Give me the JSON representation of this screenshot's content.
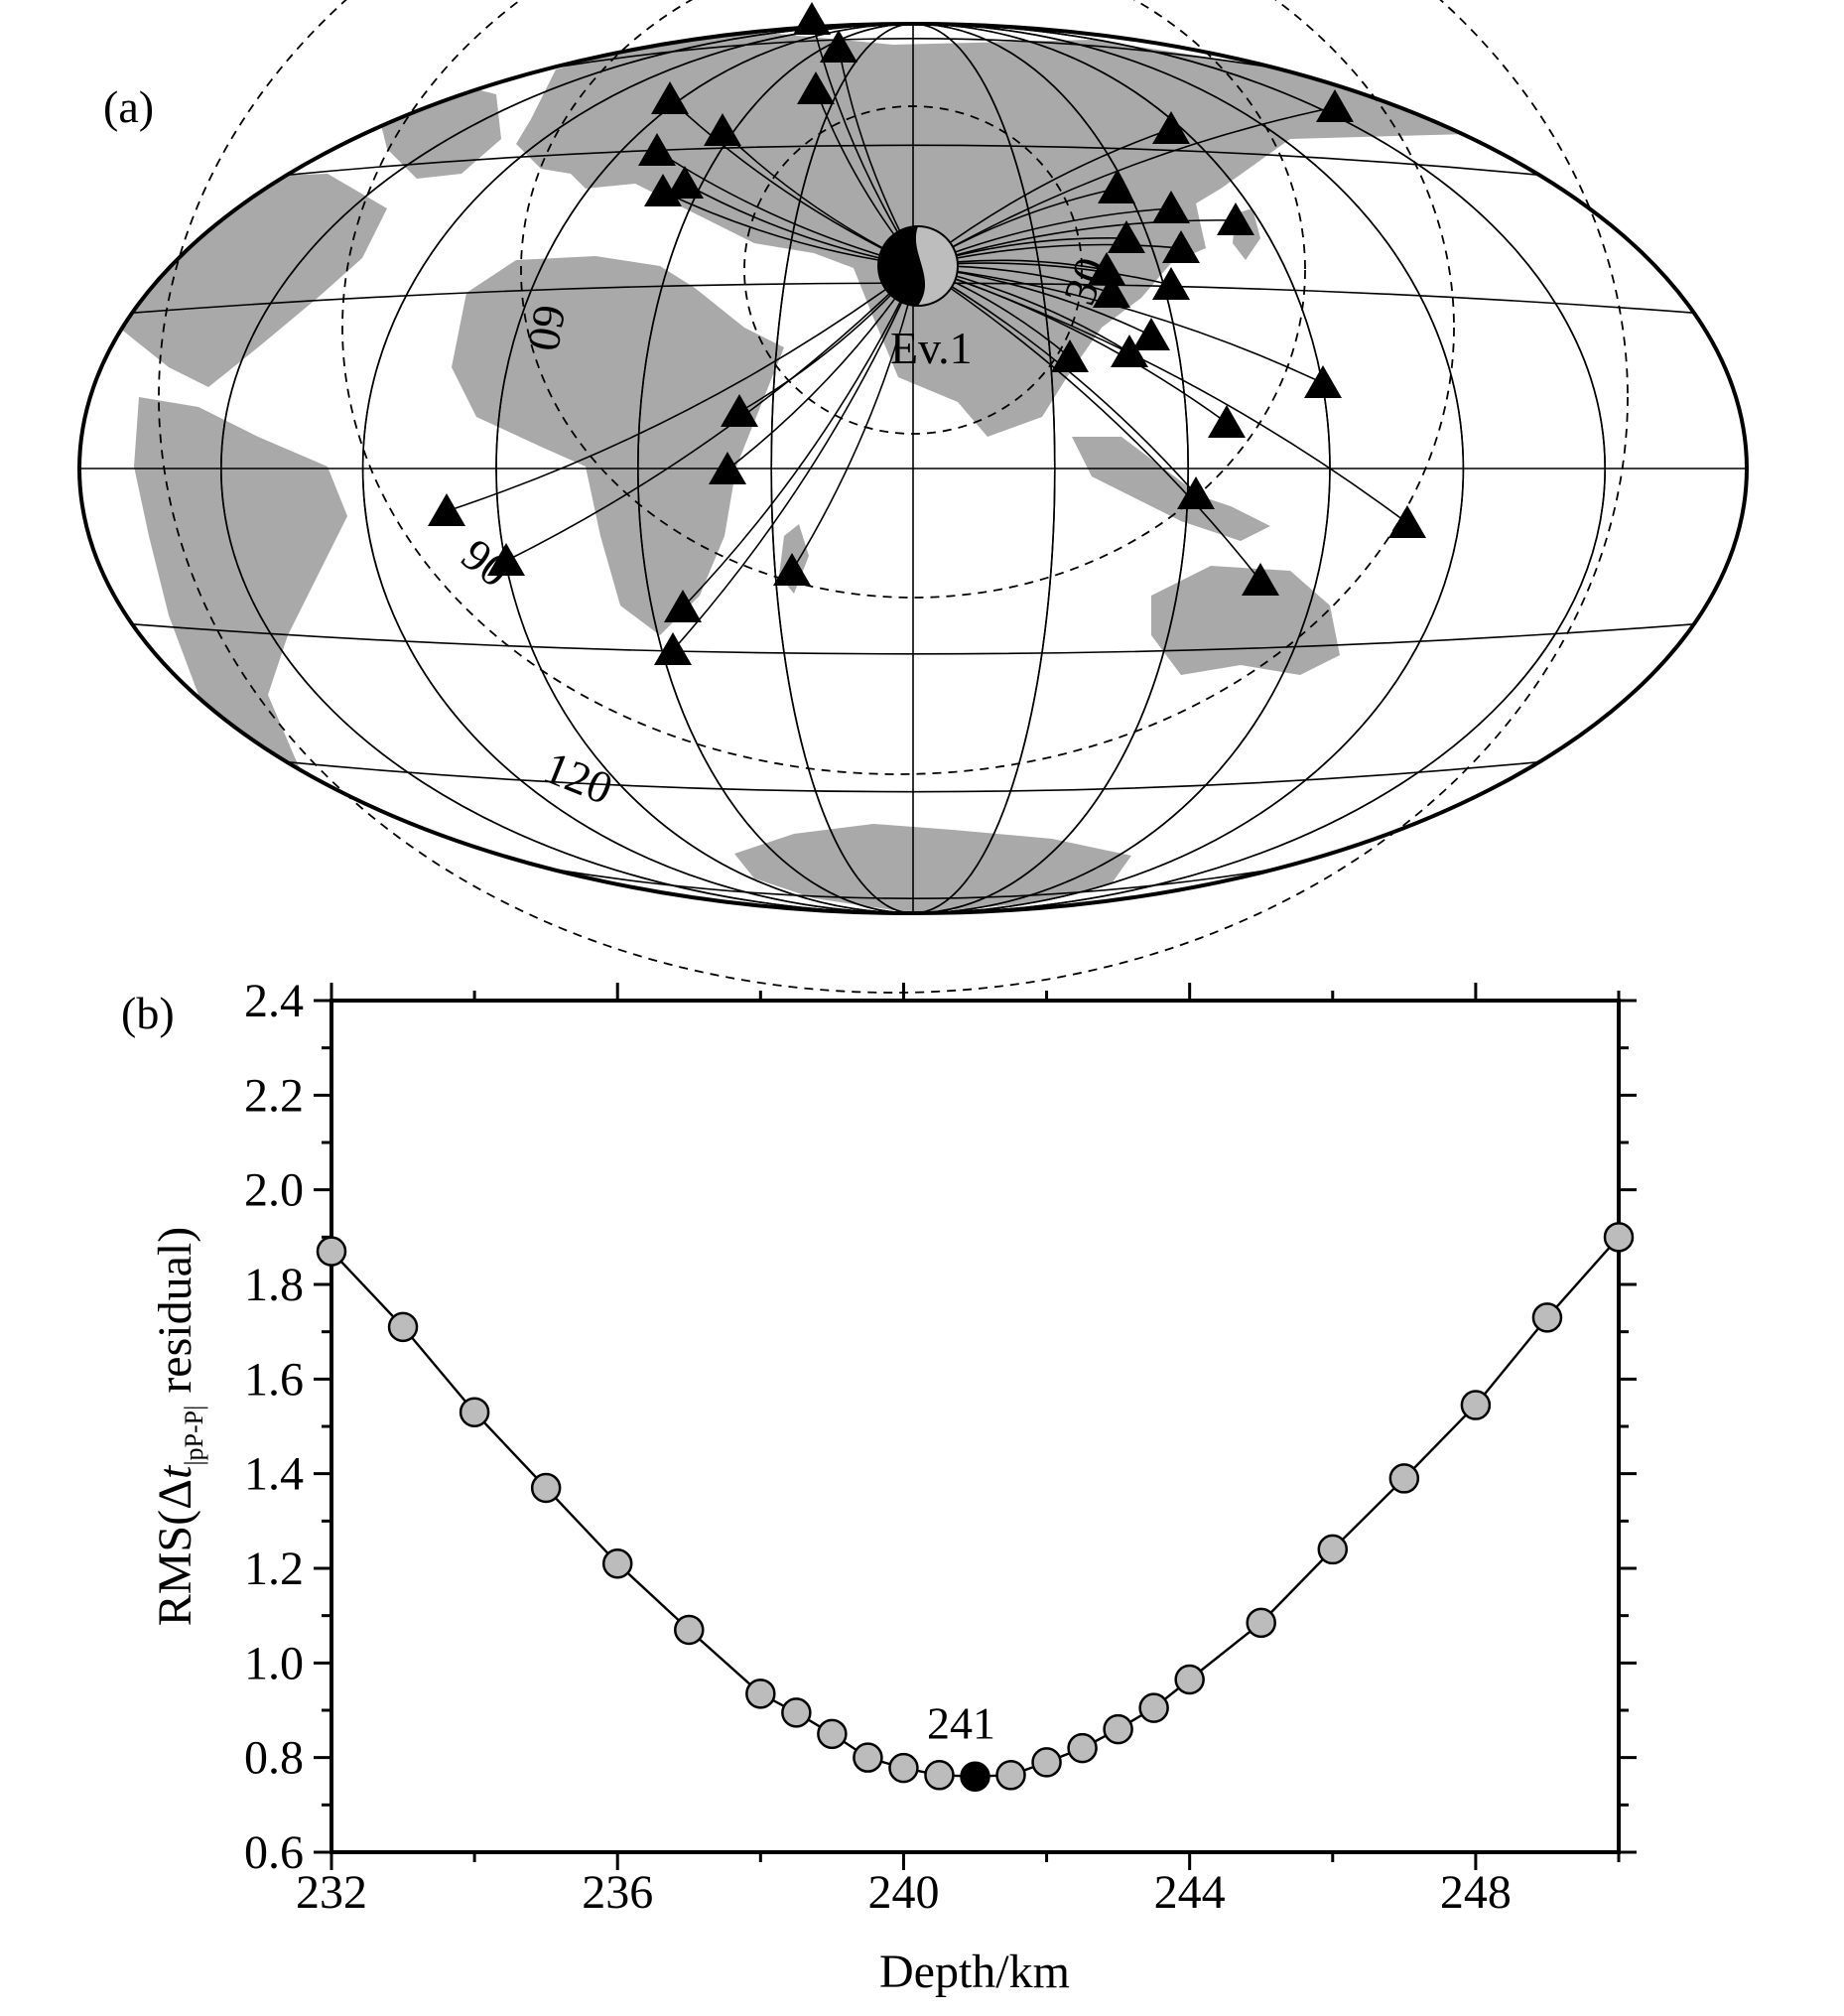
{
  "colors": {
    "land": "#a9a9a9",
    "ink": "#000000",
    "marker_fill": "#bcbcbc",
    "best_fill": "#000000"
  },
  "panel_a": {
    "label": "(a)",
    "event_label": "Ev.1",
    "distance_labels": [
      "60",
      "30",
      "90",
      "120"
    ],
    "marker": "triangle-icon",
    "mechanism": "beachball-icon"
  },
  "panel_b": {
    "label": "(b)",
    "best_label": "241"
  },
  "chart_data": {
    "type": "line",
    "title": "",
    "xlabel": "Depth/km",
    "ylabel_parts": {
      "prefix": "RMS(Δ",
      "italic": "t",
      "subscript": "|pP-P|",
      "suffix": " residual)"
    },
    "xlim": [
      232,
      250
    ],
    "ylim": [
      0.6,
      2.4
    ],
    "xticks": [
      "232",
      "236",
      "240",
      "244",
      "248"
    ],
    "yticks": [
      "0.6",
      "0.8",
      "1.0",
      "1.2",
      "1.4",
      "1.6",
      "1.8",
      "2.0",
      "2.2",
      "2.4"
    ],
    "grid": false,
    "series": [
      {
        "x": [
          232,
          233,
          234,
          235,
          236,
          237,
          238,
          238.5,
          239,
          239.5,
          240,
          240.5,
          241,
          241.5,
          242,
          242.5,
          243,
          243.5,
          244,
          245,
          246,
          247,
          248,
          249,
          250
        ],
        "y": [
          1.87,
          1.71,
          1.53,
          1.37,
          1.21,
          1.07,
          0.935,
          0.895,
          0.85,
          0.8,
          0.778,
          0.763,
          0.76,
          0.763,
          0.79,
          0.82,
          0.86,
          0.905,
          0.965,
          1.085,
          1.24,
          1.39,
          1.545,
          1.73,
          1.9
        ]
      }
    ],
    "best": {
      "x": 241,
      "y": 0.76
    }
  }
}
